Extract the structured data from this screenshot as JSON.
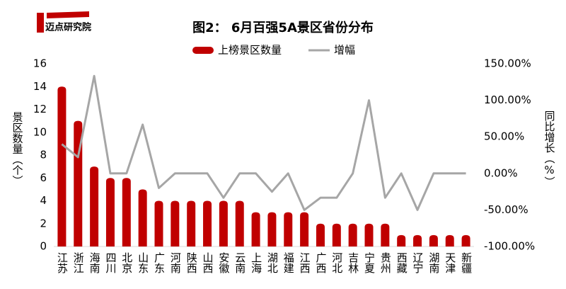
{
  "brand": "迈点研究院",
  "chart_data": {
    "type": "bar-line",
    "title": "图2： 6月百强5A景区省份分布",
    "categories": [
      "江苏",
      "浙江",
      "海南",
      "四川",
      "北京",
      "山东",
      "广东",
      "河南",
      "陕西",
      "山西",
      "安徽",
      "云南",
      "上海",
      "湖北",
      "福建",
      "江西",
      "广西",
      "河北",
      "吉林",
      "宁夏",
      "贵州",
      "西藏",
      "辽宁",
      "湖南",
      "天津",
      "新疆"
    ],
    "series": [
      {
        "name": "上榜景区数量",
        "type": "bar",
        "color": "#c00000",
        "axis": "y",
        "values": [
          14,
          11,
          7,
          6,
          6,
          5,
          4,
          4,
          4,
          4,
          4,
          4,
          3,
          3,
          3,
          3,
          2,
          2,
          2,
          2,
          2,
          1,
          1,
          1,
          1,
          1
        ]
      },
      {
        "name": "增幅",
        "type": "line",
        "color": "#a6a6a6",
        "axis": "y2",
        "values": [
          40,
          22.2,
          133.3,
          0,
          0,
          66.7,
          -20,
          0,
          0,
          0,
          -33.3,
          0,
          0,
          -25,
          0,
          -50,
          -33.3,
          -33.3,
          0,
          100,
          -33.3,
          0,
          -50,
          0,
          0,
          0
        ]
      }
    ],
    "ylabel": "景区数量（个）",
    "y2label": "同比增长（%）",
    "ylim": [
      0,
      16
    ],
    "yticks": [
      0,
      2,
      4,
      6,
      8,
      10,
      12,
      14,
      16
    ],
    "y2lim": [
      -100,
      150
    ],
    "y2ticks": [
      {
        "value": -100,
        "label": "-100.00%"
      },
      {
        "value": -50,
        "label": "-50.00%"
      },
      {
        "value": 0,
        "label": "0.00%"
      },
      {
        "value": 50,
        "label": "50.00%"
      },
      {
        "value": 100,
        "label": "100.00%"
      },
      {
        "value": 150,
        "label": "150.00%"
      }
    ],
    "grid": false,
    "legend": "top"
  }
}
